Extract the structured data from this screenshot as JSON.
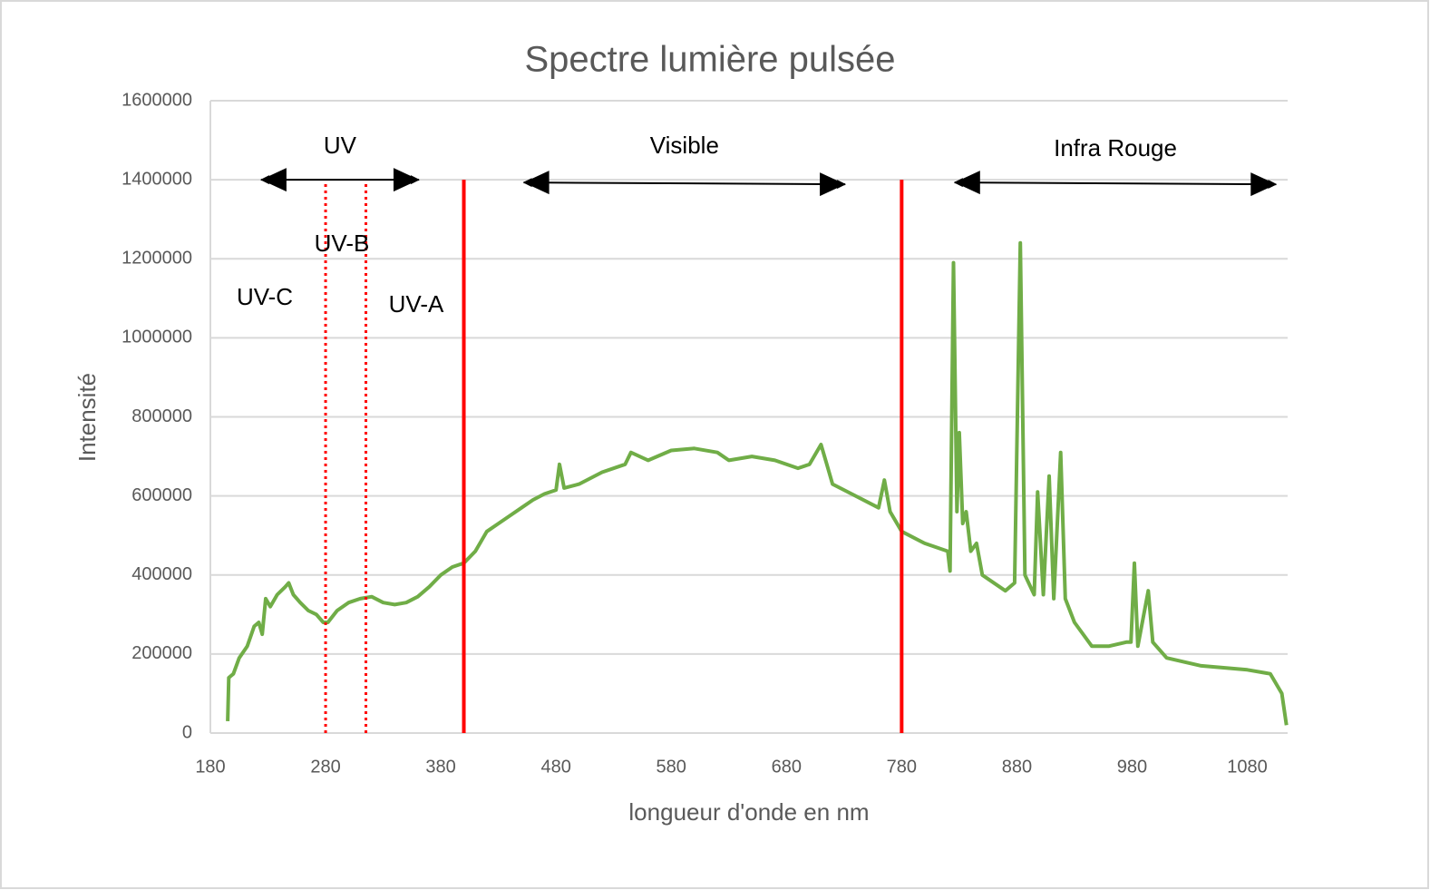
{
  "chart_data": {
    "type": "line",
    "title": "Spectre lumière pulsée",
    "x_label": "longueur d'onde en nm",
    "y_label": "Intensité",
    "xlim": [
      180,
      1115
    ],
    "xticks": [
      180,
      280,
      380,
      480,
      580,
      680,
      780,
      880,
      980,
      1080
    ],
    "ylim": [
      0,
      1600000
    ],
    "yticks": [
      0,
      200000,
      400000,
      600000,
      800000,
      1000000,
      1200000,
      1400000,
      1600000
    ],
    "grid": true,
    "x": [
      195,
      196,
      200,
      205,
      212,
      218,
      222,
      225,
      228,
      232,
      238,
      245,
      248,
      252,
      258,
      265,
      272,
      278,
      282,
      290,
      300,
      310,
      320,
      330,
      340,
      350,
      360,
      370,
      380,
      390,
      400,
      410,
      420,
      430,
      440,
      450,
      460,
      470,
      480,
      483,
      487,
      500,
      520,
      540,
      545,
      560,
      580,
      600,
      620,
      630,
      650,
      670,
      690,
      700,
      710,
      715,
      720,
      740,
      760,
      765,
      770,
      780,
      800,
      820,
      822,
      825,
      828,
      830,
      833,
      836,
      840,
      845,
      850,
      870,
      878,
      883,
      887,
      895,
      898,
      903,
      908,
      912,
      918,
      922,
      930,
      945,
      960,
      975,
      979,
      982,
      985,
      994,
      998,
      1010,
      1040,
      1080,
      1100,
      1110,
      1114
    ],
    "series": [
      {
        "name": "Intensité",
        "color": "#70ad47",
        "values": [
          30000,
          140000,
          150000,
          190000,
          220000,
          270000,
          280000,
          250000,
          340000,
          320000,
          350000,
          370000,
          380000,
          350000,
          330000,
          310000,
          300000,
          280000,
          280000,
          310000,
          330000,
          340000,
          345000,
          330000,
          325000,
          330000,
          345000,
          370000,
          400000,
          420000,
          430000,
          460000,
          510000,
          530000,
          550000,
          570000,
          590000,
          605000,
          615000,
          680000,
          620000,
          630000,
          660000,
          680000,
          710000,
          690000,
          715000,
          720000,
          710000,
          690000,
          700000,
          690000,
          670000,
          680000,
          730000,
          680000,
          630000,
          600000,
          570000,
          640000,
          560000,
          510000,
          480000,
          460000,
          410000,
          1190000,
          560000,
          760000,
          530000,
          560000,
          460000,
          480000,
          400000,
          360000,
          380000,
          1240000,
          400000,
          350000,
          610000,
          350000,
          650000,
          340000,
          710000,
          340000,
          280000,
          220000,
          220000,
          230000,
          230000,
          430000,
          220000,
          360000,
          230000,
          190000,
          170000,
          160000,
          150000,
          100000,
          20000
        ]
      }
    ],
    "vlines": [
      {
        "x": 280,
        "color": "#ff0000",
        "style": "dotted"
      },
      {
        "x": 315,
        "color": "#ff0000",
        "style": "dotted"
      },
      {
        "x": 400,
        "color": "#ff0000",
        "style": "solid"
      },
      {
        "x": 780,
        "color": "#ff0000",
        "style": "solid"
      }
    ],
    "vline_top": 1400000,
    "arrows": [
      {
        "label": "UV",
        "from": 224,
        "to": 361
      },
      {
        "label": "Visible",
        "from": 452,
        "to": 731
      },
      {
        "label": "Infra Rouge",
        "from": 826,
        "to": 1105
      }
    ],
    "arrow_y": 1400000,
    "band_labels": [
      "UV-C",
      "UV-B",
      "UV-A"
    ]
  }
}
